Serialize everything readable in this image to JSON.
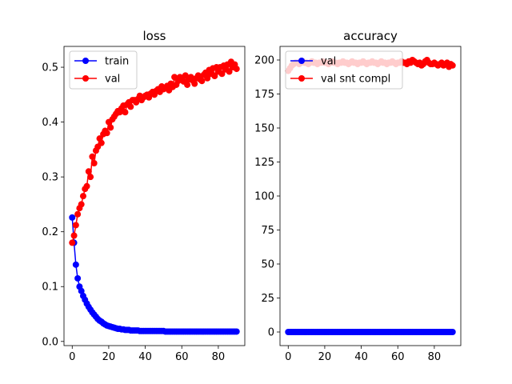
{
  "chart_data": [
    {
      "type": "line",
      "title": "loss",
      "xlabel": "",
      "ylabel": "",
      "xlim": [
        -4.5,
        94.5
      ],
      "ylim": [
        -0.0076,
        0.538
      ],
      "xticks": [
        "0",
        "20",
        "40",
        "60",
        "80"
      ],
      "yticks": [
        "0.0",
        "0.1",
        "0.2",
        "0.3",
        "0.4",
        "0.5"
      ],
      "legend": "upper-left",
      "grid": false,
      "series": [
        {
          "name": "train",
          "color": "#0000ff",
          "marker": "circle",
          "x": [
            0,
            1,
            2,
            3,
            4,
            5,
            6,
            7,
            8,
            9,
            10,
            11,
            12,
            13,
            14,
            15,
            16,
            17,
            18,
            19,
            20,
            21,
            22,
            23,
            24,
            25,
            26,
            27,
            28,
            29,
            30,
            31,
            32,
            33,
            34,
            35,
            36,
            37,
            38,
            39,
            40,
            41,
            42,
            43,
            44,
            45,
            46,
            47,
            48,
            49,
            50,
            51,
            52,
            53,
            54,
            55,
            56,
            57,
            58,
            59,
            60,
            61,
            62,
            63,
            64,
            65,
            66,
            67,
            68,
            69,
            70,
            71,
            72,
            73,
            74,
            75,
            76,
            77,
            78,
            79,
            80,
            81,
            82,
            83,
            84,
            85,
            86,
            87,
            88,
            89,
            90
          ],
          "y": [
            0.226,
            0.18,
            0.14,
            0.115,
            0.1,
            0.092,
            0.083,
            0.076,
            0.069,
            0.063,
            0.058,
            0.053,
            0.049,
            0.045,
            0.041,
            0.038,
            0.036,
            0.033,
            0.031,
            0.029,
            0.028,
            0.027,
            0.026,
            0.025,
            0.024,
            0.023,
            0.023,
            0.022,
            0.022,
            0.021,
            0.021,
            0.021,
            0.02,
            0.02,
            0.02,
            0.02,
            0.02,
            0.019,
            0.019,
            0.019,
            0.019,
            0.019,
            0.019,
            0.019,
            0.019,
            0.019,
            0.019,
            0.019,
            0.019,
            0.019,
            0.019,
            0.018,
            0.018,
            0.018,
            0.018,
            0.018,
            0.018,
            0.018,
            0.018,
            0.018,
            0.018,
            0.018,
            0.018,
            0.018,
            0.018,
            0.018,
            0.018,
            0.018,
            0.018,
            0.018,
            0.018,
            0.018,
            0.018,
            0.018,
            0.018,
            0.018,
            0.018,
            0.018,
            0.018,
            0.018,
            0.018,
            0.018,
            0.018,
            0.018,
            0.018,
            0.018,
            0.018,
            0.018,
            0.018,
            0.018,
            0.018
          ]
        },
        {
          "name": "val",
          "color": "#ff0000",
          "marker": "circle",
          "x": [
            0,
            1,
            2,
            3,
            4,
            5,
            6,
            7,
            8,
            9,
            10,
            11,
            12,
            13,
            14,
            15,
            16,
            17,
            18,
            19,
            20,
            21,
            22,
            23,
            24,
            25,
            26,
            27,
            28,
            29,
            30,
            31,
            32,
            33,
            34,
            35,
            36,
            37,
            38,
            39,
            40,
            41,
            42,
            43,
            44,
            45,
            46,
            47,
            48,
            49,
            50,
            51,
            52,
            53,
            54,
            55,
            56,
            57,
            58,
            59,
            60,
            61,
            62,
            63,
            64,
            65,
            66,
            67,
            68,
            69,
            70,
            71,
            72,
            73,
            74,
            75,
            76,
            77,
            78,
            79,
            80,
            81,
            82,
            83,
            84,
            85,
            86,
            87,
            88,
            89,
            90
          ],
          "y": [
            0.18,
            0.193,
            0.212,
            0.232,
            0.243,
            0.25,
            0.265,
            0.278,
            0.283,
            0.31,
            0.3,
            0.337,
            0.325,
            0.348,
            0.355,
            0.37,
            0.362,
            0.378,
            0.384,
            0.38,
            0.4,
            0.39,
            0.405,
            0.41,
            0.415,
            0.42,
            0.418,
            0.425,
            0.43,
            0.418,
            0.432,
            0.436,
            0.428,
            0.44,
            0.44,
            0.436,
            0.442,
            0.448,
            0.44,
            0.445,
            0.448,
            0.45,
            0.445,
            0.452,
            0.455,
            0.45,
            0.457,
            0.46,
            0.455,
            0.465,
            0.46,
            0.462,
            0.466,
            0.458,
            0.47,
            0.464,
            0.482,
            0.468,
            0.475,
            0.482,
            0.48,
            0.474,
            0.485,
            0.468,
            0.478,
            0.482,
            0.476,
            0.47,
            0.48,
            0.485,
            0.478,
            0.475,
            0.486,
            0.49,
            0.48,
            0.495,
            0.488,
            0.498,
            0.484,
            0.5,
            0.492,
            0.5,
            0.488,
            0.503,
            0.496,
            0.505,
            0.492,
            0.51,
            0.5,
            0.505,
            0.497
          ]
        }
      ]
    },
    {
      "type": "line",
      "title": "accuracy",
      "xlabel": "",
      "ylabel": "",
      "xlim": [
        -4.5,
        94.5
      ],
      "ylim": [
        -10,
        210
      ],
      "xticks": [
        "0",
        "20",
        "40",
        "60",
        "80"
      ],
      "yticks": [
        "0",
        "25",
        "50",
        "75",
        "100",
        "125",
        "150",
        "175",
        "200"
      ],
      "legend": "upper-left",
      "grid": false,
      "series": [
        {
          "name": "val",
          "color": "#0000ff",
          "marker": "circle",
          "x": [
            0,
            1,
            2,
            3,
            4,
            5,
            6,
            7,
            8,
            9,
            10,
            11,
            12,
            13,
            14,
            15,
            16,
            17,
            18,
            19,
            20,
            21,
            22,
            23,
            24,
            25,
            26,
            27,
            28,
            29,
            30,
            31,
            32,
            33,
            34,
            35,
            36,
            37,
            38,
            39,
            40,
            41,
            42,
            43,
            44,
            45,
            46,
            47,
            48,
            49,
            50,
            51,
            52,
            53,
            54,
            55,
            56,
            57,
            58,
            59,
            60,
            61,
            62,
            63,
            64,
            65,
            66,
            67,
            68,
            69,
            70,
            71,
            72,
            73,
            74,
            75,
            76,
            77,
            78,
            79,
            80,
            81,
            82,
            83,
            84,
            85,
            86,
            87,
            88,
            89,
            90
          ],
          "y": [
            0,
            0,
            0,
            0,
            0,
            0,
            0,
            0,
            0,
            0,
            0,
            0,
            0,
            0,
            0,
            0,
            0,
            0,
            0,
            0,
            0,
            0,
            0,
            0,
            0,
            0,
            0,
            0,
            0,
            0,
            0,
            0,
            0,
            0,
            0,
            0,
            0,
            0,
            0,
            0,
            0,
            0,
            0,
            0,
            0,
            0,
            0,
            0,
            0,
            0,
            0,
            0,
            0,
            0,
            0,
            0,
            0,
            0,
            0,
            0,
            0,
            0,
            0,
            0,
            0,
            0,
            0,
            0,
            0,
            0,
            0,
            0,
            0,
            0,
            0,
            0,
            0,
            0,
            0,
            0,
            0,
            0,
            0,
            0,
            0,
            0,
            0,
            0,
            0,
            0,
            0
          ]
        },
        {
          "name": "val snt compl",
          "color": "#ff0000",
          "marker": "circle",
          "x": [
            0,
            1,
            2,
            3,
            4,
            5,
            6,
            7,
            8,
            9,
            10,
            11,
            12,
            13,
            14,
            15,
            16,
            17,
            18,
            19,
            20,
            21,
            22,
            23,
            24,
            25,
            26,
            27,
            28,
            29,
            30,
            31,
            32,
            33,
            34,
            35,
            36,
            37,
            38,
            39,
            40,
            41,
            42,
            43,
            44,
            45,
            46,
            47,
            48,
            49,
            50,
            51,
            52,
            53,
            54,
            55,
            56,
            57,
            58,
            59,
            60,
            61,
            62,
            63,
            64,
            65,
            66,
            67,
            68,
            69,
            70,
            71,
            72,
            73,
            74,
            75,
            76,
            77,
            78,
            79,
            80,
            81,
            82,
            83,
            84,
            85,
            86,
            87,
            88,
            89,
            90
          ],
          "y": [
            192,
            194,
            196,
            197,
            198,
            198,
            197,
            198,
            199,
            198,
            198,
            197,
            198,
            199,
            198,
            198,
            197,
            198,
            198,
            199,
            198,
            198,
            197,
            198,
            199,
            198,
            198,
            197,
            198,
            198,
            199,
            198,
            198,
            197,
            198,
            199,
            198,
            198,
            197,
            198,
            198,
            199,
            198,
            197,
            198,
            198,
            199,
            198,
            198,
            197,
            198,
            199,
            198,
            198,
            197,
            198,
            198,
            199,
            198,
            197,
            198,
            198,
            199,
            198,
            198,
            197,
            199,
            198,
            200,
            199,
            198,
            197,
            198,
            196,
            197,
            199,
            200,
            198,
            197,
            197,
            198,
            197,
            196,
            197,
            198,
            196,
            197,
            198,
            195,
            197,
            196
          ]
        }
      ]
    }
  ]
}
